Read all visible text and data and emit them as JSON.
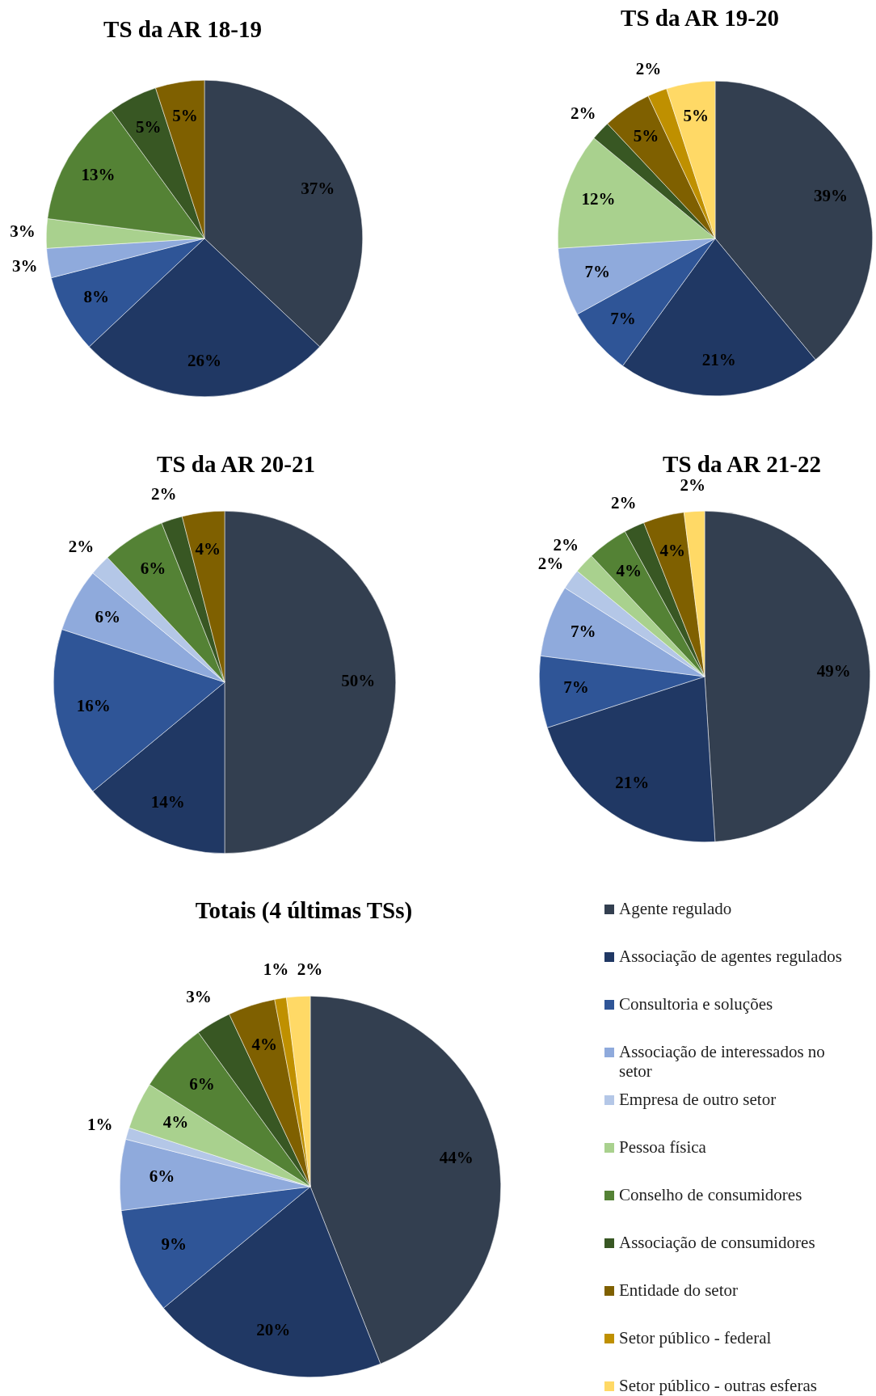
{
  "chart_data": [
    {
      "type": "pie",
      "title": "TS da AR 18-19",
      "categories": [
        null,
        null,
        null,
        null,
        null,
        null,
        null,
        null,
        null,
        null,
        null
      ],
      "values": [
        37,
        26,
        8,
        3,
        null,
        3,
        13,
        5,
        5,
        null,
        null
      ],
      "value_labels": [
        "37%",
        "26%",
        "8%",
        "3%",
        null,
        "3%",
        "13%",
        "5%",
        "5%",
        null,
        null
      ],
      "colors": [
        "#333f50",
        "#203864",
        "#2f5597",
        "#8faadc",
        "#b4c7e7",
        "#a9d18e",
        "#548235",
        "#385723",
        "#7f6000",
        "#bf9000",
        "#ffd966"
      ]
    },
    {
      "type": "pie",
      "title": "TS da AR 19-20",
      "categories": [
        null,
        null,
        null,
        null,
        null,
        null,
        null,
        null,
        null,
        null,
        null
      ],
      "values": [
        39,
        21,
        7,
        7,
        null,
        12,
        null,
        2,
        5,
        2,
        5
      ],
      "value_labels": [
        "39%",
        "21%",
        "7%",
        "7%",
        null,
        "12%",
        null,
        "2%",
        "5%",
        "2%",
        "5%"
      ],
      "colors": [
        "#333f50",
        "#203864",
        "#2f5597",
        "#8faadc",
        "#b4c7e7",
        "#a9d18e",
        "#548235",
        "#385723",
        "#7f6000",
        "#bf9000",
        "#ffd966"
      ]
    },
    {
      "type": "pie",
      "title": "TS da AR 20-21",
      "categories": [
        null,
        null,
        null,
        null,
        null,
        null,
        null,
        null,
        null,
        null,
        null
      ],
      "values": [
        50,
        14,
        16,
        6,
        2,
        null,
        6,
        2,
        4,
        null,
        null
      ],
      "value_labels": [
        "50%",
        "14%",
        "16%",
        "6%",
        "2%",
        null,
        "6%",
        "2%",
        "4%",
        null,
        null
      ],
      "colors": [
        "#333f50",
        "#203864",
        "#2f5597",
        "#8faadc",
        "#b4c7e7",
        "#a9d18e",
        "#548235",
        "#385723",
        "#7f6000",
        "#bf9000",
        "#ffd966"
      ]
    },
    {
      "type": "pie",
      "title": "TS da AR 21-22",
      "categories": [
        null,
        null,
        null,
        null,
        null,
        null,
        null,
        null,
        null,
        null,
        null
      ],
      "values": [
        49,
        21,
        7,
        7,
        2,
        2,
        4,
        2,
        4,
        null,
        2
      ],
      "value_labels": [
        "49%",
        "21%",
        "7%",
        "7%",
        "2%",
        "2%",
        "4%",
        "2%",
        "4%",
        null,
        "2%"
      ],
      "colors": [
        "#333f50",
        "#203864",
        "#2f5597",
        "#8faadc",
        "#b4c7e7",
        "#a9d18e",
        "#548235",
        "#385723",
        "#7f6000",
        "#bf9000",
        "#ffd966"
      ]
    },
    {
      "type": "pie",
      "title": "Totais (4 últimas TSs)",
      "categories": [
        "Agente regulado",
        "Associação de agentes regulados",
        "Consultoria e soluções",
        "Associação de interessados no setor",
        "Empresa de outro setor",
        "Pessoa física",
        "Conselho de consumidores",
        "Associação de consumidores",
        "Entidade do setor",
        "Setor público - federal",
        "Setor público - outras esferas"
      ],
      "values": [
        44,
        20,
        9,
        6,
        1,
        4,
        6,
        3,
        4,
        1,
        2
      ],
      "value_labels": [
        "44%",
        "20%",
        "9%",
        "6%",
        "1%",
        "4%",
        "6%",
        "3%",
        "4%",
        "1%",
        "2%"
      ],
      "colors": [
        "#333f50",
        "#203864",
        "#2f5597",
        "#8faadc",
        "#b4c7e7",
        "#a9d18e",
        "#548235",
        "#385723",
        "#7f6000",
        "#bf9000",
        "#ffd966"
      ],
      "legend": "right"
    }
  ]
}
